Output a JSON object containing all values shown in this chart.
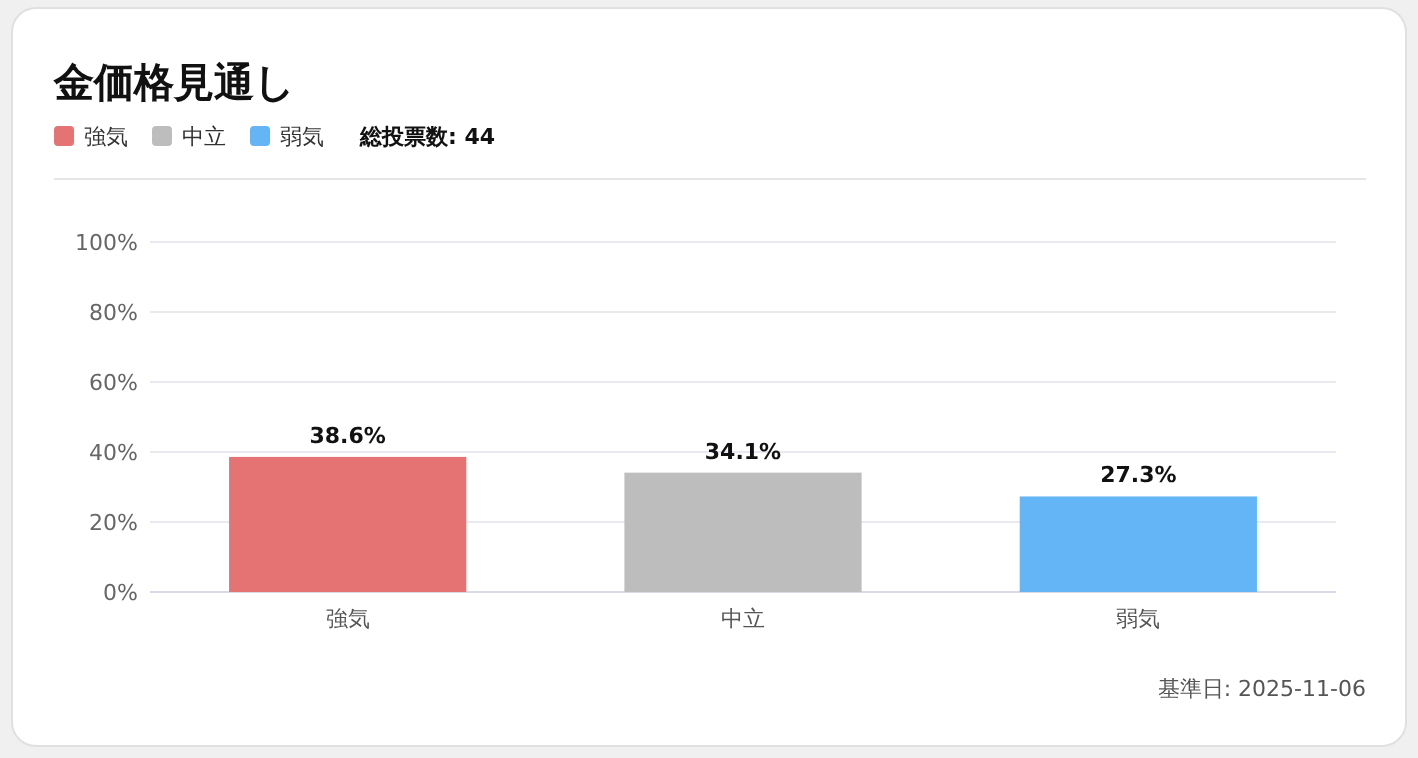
{
  "chart_data": {
    "type": "bar",
    "title": "金価格見通し",
    "categories": [
      "強気",
      "中立",
      "弱気"
    ],
    "stacked": true,
    "series": [
      {
        "name": "強気",
        "color": "#e57373",
        "values": [
          38.6,
          null,
          null
        ],
        "value_labels": [
          "38.6%",
          null,
          null
        ]
      },
      {
        "name": "中立",
        "color": "#bdbdbd",
        "values": [
          null,
          34.1,
          null
        ],
        "value_labels": [
          null,
          "34.1%",
          null
        ]
      },
      {
        "name": "弱気",
        "color": "#64b5f6",
        "values": [
          null,
          null,
          27.3
        ],
        "value_labels": [
          null,
          null,
          "27.3%"
        ]
      }
    ],
    "ylim": [
      0,
      100
    ],
    "yticks": [
      {
        "value": 0,
        "label": "0%"
      },
      {
        "value": 20,
        "label": "20%"
      },
      {
        "value": 40,
        "label": "40%"
      },
      {
        "value": 60,
        "label": "60%"
      },
      {
        "value": 80,
        "label": "80%"
      },
      {
        "value": 100,
        "label": "100%"
      }
    ],
    "grid": "y",
    "legend": "top left",
    "annotations": [
      "総投票数: 44",
      "基準日: 2025-11-06"
    ]
  }
}
